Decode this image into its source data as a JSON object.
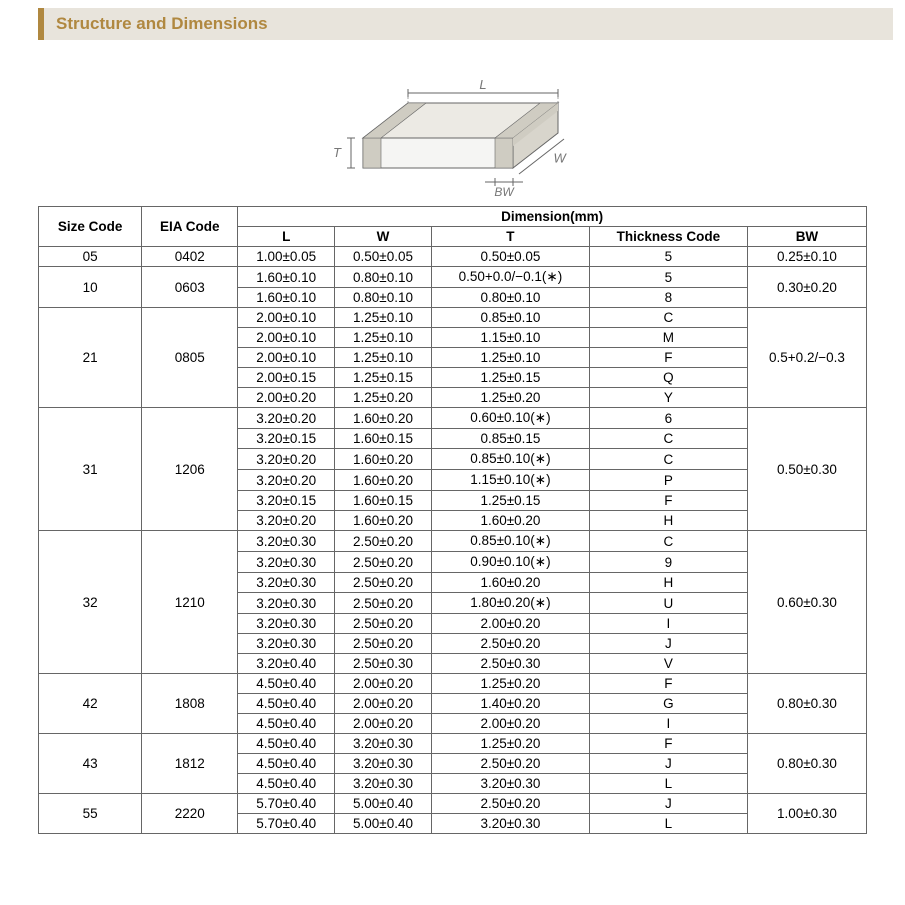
{
  "header": {
    "title": "Structure and Dimensions"
  },
  "diagram": {
    "labels": {
      "L": "L",
      "W": "W",
      "T": "T",
      "BW": "BW"
    },
    "stroke": "#666666",
    "fill_front": "#f5f5f3",
    "fill_top": "#eceae4",
    "fill_side": "#d8d5cc",
    "band_fill": "#cfccc2",
    "text_color": "#777777"
  },
  "table": {
    "head": {
      "size_code": "Size Code",
      "eia_code": "EIA Code",
      "dimension": "Dimension(mm)",
      "L": "L",
      "W": "W",
      "T": "T",
      "thick": "Thickness  Code",
      "BW": "BW"
    },
    "groups": [
      {
        "size": "05",
        "eia": "0402",
        "bw": "0.25±0.10",
        "rows": [
          {
            "L": "1.00±0.05",
            "W": "0.50±0.05",
            "T": "0.50±0.05",
            "tc": "5"
          }
        ]
      },
      {
        "size": "10",
        "eia": "0603",
        "bw": "0.30±0.20",
        "rows": [
          {
            "L": "1.60±0.10",
            "W": "0.80±0.10",
            "T": "0.50+0.0/−0.1(∗)",
            "tc": "5"
          },
          {
            "L": "1.60±0.10",
            "W": "0.80±0.10",
            "T": "0.80±0.10",
            "tc": "8"
          }
        ]
      },
      {
        "size": "21",
        "eia": "0805",
        "bw": "0.5+0.2/−0.3",
        "rows": [
          {
            "L": "2.00±0.10",
            "W": "1.25±0.10",
            "T": "0.85±0.10",
            "tc": "C"
          },
          {
            "L": "2.00±0.10",
            "W": "1.25±0.10",
            "T": "1.15±0.10",
            "tc": "M"
          },
          {
            "L": "2.00±0.10",
            "W": "1.25±0.10",
            "T": "1.25±0.10",
            "tc": "F"
          },
          {
            "L": "2.00±0.15",
            "W": "1.25±0.15",
            "T": "1.25±0.15",
            "tc": "Q"
          },
          {
            "L": "2.00±0.20",
            "W": "1.25±0.20",
            "T": "1.25±0.20",
            "tc": "Y"
          }
        ]
      },
      {
        "size": "31",
        "eia": "1206",
        "bw": "0.50±0.30",
        "rows": [
          {
            "L": "3.20±0.20",
            "W": "1.60±0.20",
            "T": "0.60±0.10(∗)",
            "tc": "6"
          },
          {
            "L": "3.20±0.15",
            "W": "1.60±0.15",
            "T": "0.85±0.15",
            "tc": "C"
          },
          {
            "L": "3.20±0.20",
            "W": "1.60±0.20",
            "T": "0.85±0.10(∗)",
            "tc": "C"
          },
          {
            "L": "3.20±0.20",
            "W": "1.60±0.20",
            "T": "1.15±0.10(∗)",
            "tc": "P"
          },
          {
            "L": "3.20±0.15",
            "W": "1.60±0.15",
            "T": "1.25±0.15",
            "tc": "F"
          },
          {
            "L": "3.20±0.20",
            "W": "1.60±0.20",
            "T": "1.60±0.20",
            "tc": "H"
          }
        ]
      },
      {
        "size": "32",
        "eia": "1210",
        "bw": "0.60±0.30",
        "rows": [
          {
            "L": "3.20±0.30",
            "W": "2.50±0.20",
            "T": "0.85±0.10(∗)",
            "tc": "C"
          },
          {
            "L": "3.20±0.30",
            "W": "2.50±0.20",
            "T": "0.90±0.10(∗)",
            "tc": "9"
          },
          {
            "L": "3.20±0.30",
            "W": "2.50±0.20",
            "T": "1.60±0.20",
            "tc": "H"
          },
          {
            "L": "3.20±0.30",
            "W": "2.50±0.20",
            "T": "1.80±0.20(∗)",
            "tc": "U"
          },
          {
            "L": "3.20±0.30",
            "W": "2.50±0.20",
            "T": "2.00±0.20",
            "tc": "I"
          },
          {
            "L": "3.20±0.30",
            "W": "2.50±0.20",
            "T": "2.50±0.20",
            "tc": "J"
          },
          {
            "L": "3.20±0.40",
            "W": "2.50±0.30",
            "T": "2.50±0.30",
            "tc": "V"
          }
        ]
      },
      {
        "size": "42",
        "eia": "1808",
        "bw": "0.80±0.30",
        "rows": [
          {
            "L": "4.50±0.40",
            "W": "2.00±0.20",
            "T": "1.25±0.20",
            "tc": "F"
          },
          {
            "L": "4.50±0.40",
            "W": "2.00±0.20",
            "T": "1.40±0.20",
            "tc": "G"
          },
          {
            "L": "4.50±0.40",
            "W": "2.00±0.20",
            "T": "2.00±0.20",
            "tc": "I"
          }
        ]
      },
      {
        "size": "43",
        "eia": "1812",
        "bw": "0.80±0.30",
        "rows": [
          {
            "L": "4.50±0.40",
            "W": "3.20±0.30",
            "T": "1.25±0.20",
            "tc": "F"
          },
          {
            "L": "4.50±0.40",
            "W": "3.20±0.30",
            "T": "2.50±0.20",
            "tc": "J"
          },
          {
            "L": "4.50±0.40",
            "W": "3.20±0.30",
            "T": "3.20±0.30",
            "tc": "L"
          }
        ]
      },
      {
        "size": "55",
        "eia": "2220",
        "bw": "1.00±0.30",
        "rows": [
          {
            "L": "5.70±0.40",
            "W": "5.00±0.40",
            "T": "2.50±0.20",
            "tc": "J"
          },
          {
            "L": "5.70±0.40",
            "W": "5.00±0.40",
            "T": "3.20±0.30",
            "tc": "L"
          }
        ]
      }
    ]
  }
}
